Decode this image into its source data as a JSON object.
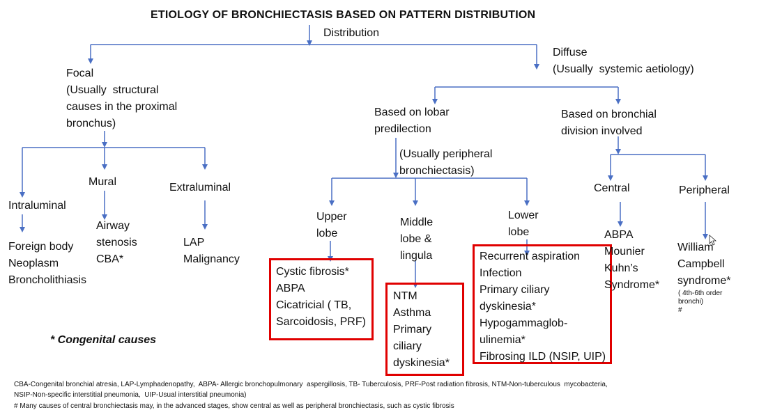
{
  "title": "ETIOLOGY OF BRONCHIECTASIS BASED ON PATTERN DISTRIBUTION",
  "nodes": {
    "distribution": "Distribution",
    "focal": "Focal\n(Usually  structural\ncauses in the proximal\nbronchus)",
    "diffuse": "Diffuse\n(Usually  systemic aetiology)",
    "intraluminal": "Intraluminal",
    "mural": "Mural",
    "extraluminal": "Extraluminal",
    "intraluminal_causes": "Foreign body\nNeoplasm\nBroncholithiasis",
    "mural_causes": "Airway\nstenosis\nCBA*",
    "extraluminal_causes": "LAP\nMalignancy",
    "lobar": "Based on lobar\npredilection",
    "lobar_note": "(Usually peripheral\nbronchiectasis)",
    "bronchial_division": "Based on bronchial\ndivision involved",
    "upper_lobe": "Upper\nlobe",
    "middle_lobe": "Middle\nlobe &\nlingula",
    "lower_lobe": "Lower\nlobe",
    "central": "Central",
    "peripheral": "Peripheral",
    "upper_causes": "Cystic fibrosis*\nABPA\nCicatricial ( TB,\nSarcoidosis, PRF)",
    "middle_causes": "NTM\nAsthma\nPrimary\nciliary\ndyskinesia*",
    "lower_causes": "Recurrent aspiration\nInfection\nPrimary ciliary\ndyskinesia*\nHypogammaglob-\nulinemia*\nFibrosing ILD (NSIP, UIP)",
    "central_causes": "ABPA\nMounier\nKuhn’s\nSyndrome*",
    "peripheral_causes": "William\nCampbell\nsyndrome*",
    "peripheral_note": "( 4th-6th order\nbronchi)\n#"
  },
  "congenital_note": "* Congenital causes",
  "footnotes": [
    "CBA-Congenital bronchial atresia, LAP-Lymphadenopathy,  ABPA- Allergic bronchopulmonary  aspergillosis, TB- Tuberculosis, PRF-Post radiation fibrosis, NTM-Non-tuberculous  mycobacteria,",
    "NSIP-Non-specific interstitial pneumonia,  UIP-Usual interstitial pneumonia)",
    "# Many causes of central bronchiectasis may, in the advanced stages, show central as well as peripheral bronchiectasis, such as cystic fibrosis"
  ],
  "colors": {
    "connector": "#4a6fc4",
    "highlight_box": "#e00000",
    "text": "#111111"
  }
}
